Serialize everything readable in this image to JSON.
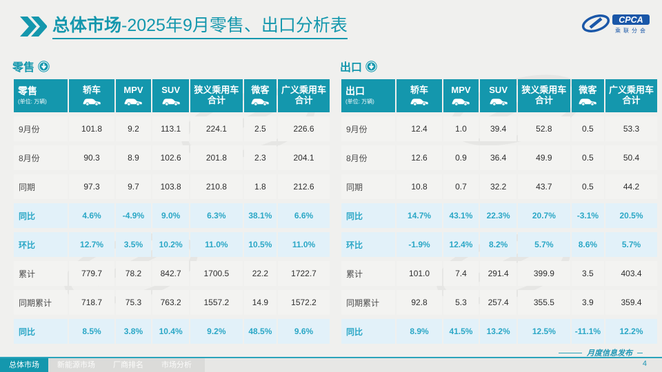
{
  "title": {
    "bold": "总体市场",
    "rest": "-2025年9月零售、出口分析表"
  },
  "logo": {
    "name": "CPCA",
    "subtext": "乘联分会"
  },
  "columns": [
    {
      "label": "轿车",
      "icon": "sedan-icon"
    },
    {
      "label": "MPV",
      "icon": "mpv-icon"
    },
    {
      "label": "SUV",
      "icon": "suv-icon"
    },
    {
      "label": "狭义乘用车",
      "label2": "合计"
    },
    {
      "label": "微客",
      "icon": "minivan-icon"
    },
    {
      "label": "广义乘用车",
      "label2": "合计"
    }
  ],
  "tables": [
    {
      "section_label": "零售",
      "corner_label": "零售",
      "unit_note": "(单位: 万辆)",
      "rows": [
        {
          "label": "9月份",
          "style": "plain",
          "values": [
            "101.8",
            "9.2",
            "113.1",
            "224.1",
            "2.5",
            "226.6"
          ]
        },
        {
          "label": "8月份",
          "style": "plain",
          "values": [
            "90.3",
            "8.9",
            "102.6",
            "201.8",
            "2.3",
            "204.1"
          ]
        },
        {
          "label": "同期",
          "style": "plain",
          "values": [
            "97.3",
            "9.7",
            "103.8",
            "210.8",
            "1.8",
            "212.6"
          ]
        },
        {
          "label": "同比",
          "style": "highlight",
          "values": [
            "4.6%",
            "-4.9%",
            "9.0%",
            "6.3%",
            "38.1%",
            "6.6%"
          ]
        },
        {
          "label": "环比",
          "style": "highlight",
          "values": [
            "12.7%",
            "3.5%",
            "10.2%",
            "11.0%",
            "10.5%",
            "11.0%"
          ]
        },
        {
          "label": "累计",
          "style": "plain",
          "values": [
            "779.7",
            "78.2",
            "842.7",
            "1700.5",
            "22.2",
            "1722.7"
          ]
        },
        {
          "label": "同期累计",
          "style": "plain",
          "values": [
            "718.7",
            "75.3",
            "763.2",
            "1557.2",
            "14.9",
            "1572.2"
          ]
        },
        {
          "label": "同比",
          "style": "highlight",
          "values": [
            "8.5%",
            "3.8%",
            "10.4%",
            "9.2%",
            "48.5%",
            "9.6%"
          ]
        }
      ]
    },
    {
      "section_label": "出口",
      "corner_label": "出口",
      "unit_note": "(单位: 万辆)",
      "rows": [
        {
          "label": "9月份",
          "style": "plain",
          "values": [
            "12.4",
            "1.0",
            "39.4",
            "52.8",
            "0.5",
            "53.3"
          ]
        },
        {
          "label": "8月份",
          "style": "plain",
          "values": [
            "12.6",
            "0.9",
            "36.4",
            "49.9",
            "0.5",
            "50.4"
          ]
        },
        {
          "label": "同期",
          "style": "plain",
          "values": [
            "10.8",
            "0.7",
            "32.2",
            "43.7",
            "0.5",
            "44.2"
          ]
        },
        {
          "label": "同比",
          "style": "highlight",
          "values": [
            "14.7%",
            "43.1%",
            "22.3%",
            "20.7%",
            "-3.1%",
            "20.5%"
          ]
        },
        {
          "label": "环比",
          "style": "highlight",
          "values": [
            "-1.9%",
            "12.4%",
            "8.2%",
            "5.7%",
            "8.6%",
            "5.7%"
          ]
        },
        {
          "label": "累计",
          "style": "plain",
          "values": [
            "101.0",
            "7.4",
            "291.4",
            "399.9",
            "3.5",
            "403.4"
          ]
        },
        {
          "label": "同期累计",
          "style": "plain",
          "values": [
            "92.8",
            "5.3",
            "257.4",
            "355.5",
            "3.9",
            "359.4"
          ]
        },
        {
          "label": "同比",
          "style": "highlight",
          "values": [
            "8.9%",
            "41.5%",
            "13.2%",
            "12.5%",
            "-11.1%",
            "12.2%"
          ]
        }
      ]
    }
  ],
  "footer": {
    "tabs": [
      {
        "label": "总体市场",
        "active": true
      },
      {
        "label": "新能源市场",
        "active": false
      },
      {
        "label": "厂商排名",
        "active": false
      },
      {
        "label": "市场分析",
        "active": false
      }
    ],
    "release_label": "月度信息发布",
    "page_number": "4"
  },
  "colors": {
    "teal": "#1497ad",
    "teal_text": "#2ba7c6",
    "highlight_row_bg": "#e2f1f9",
    "plain_row_bg": "#f3f3f1",
    "logo_blue": "#1a57a8"
  },
  "icons": {
    "title_marker": "double-chevron-icon",
    "section_marker": "circle-down-arrow-icon",
    "header_vehicles": [
      "sedan-icon",
      "mpv-icon",
      "suv-icon",
      "minivan-icon"
    ]
  }
}
